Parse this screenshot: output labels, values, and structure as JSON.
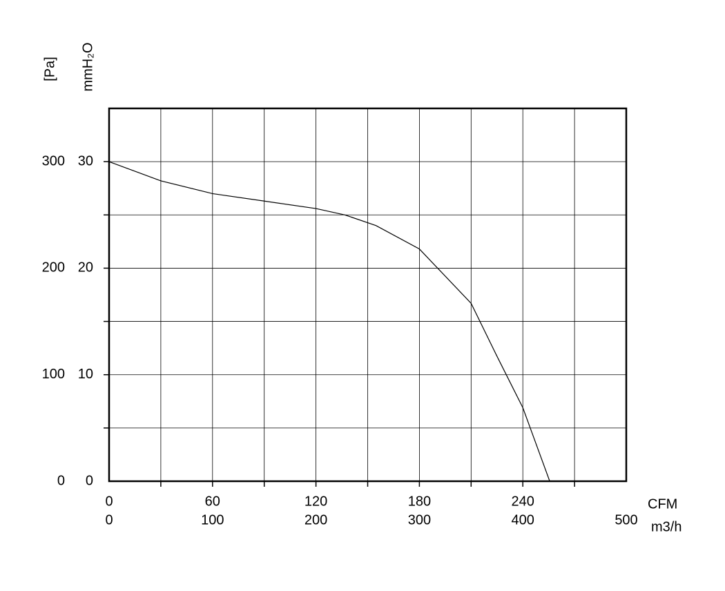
{
  "chart_data": {
    "type": "line",
    "xlabel": "CFM",
    "x2label": "m3/h",
    "ylabel": "[Pa]",
    "y2label": "mmH₂O",
    "x": [
      0,
      30,
      60,
      90,
      120,
      136.8,
      154.8,
      180,
      210,
      224.8,
      240,
      255.6
    ],
    "series": [
      {
        "color": "#000000",
        "values": [
          300,
          282,
          270,
          263,
          256,
          250,
          240,
          218,
          167,
          118,
          69,
          0
        ]
      }
    ],
    "xlim": [
      0,
      300
    ],
    "xticks": [
      0,
      60,
      120,
      180,
      240
    ],
    "x2lim": [
      0,
      500
    ],
    "x2ticks": [
      0,
      100,
      200,
      300,
      400,
      500
    ],
    "ylim": [
      0,
      350
    ],
    "yticks": [
      0,
      100,
      200,
      300
    ],
    "y2lim": [
      0,
      35
    ],
    "y2ticks": [
      0,
      10,
      20,
      30
    ],
    "xgrid": [
      30,
      60,
      90,
      120,
      150,
      180,
      210,
      240,
      270
    ],
    "ygrid": [
      50,
      100,
      150,
      200,
      250,
      300
    ],
    "grid": true
  }
}
